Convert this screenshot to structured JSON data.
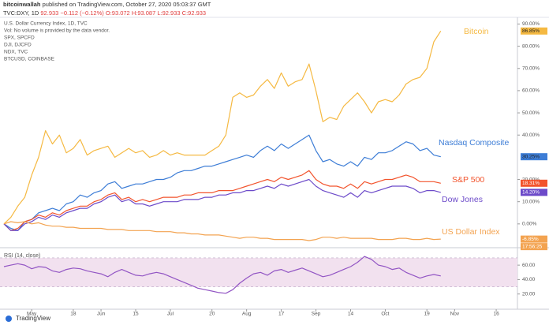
{
  "header": {
    "author": "bitcoinwallah",
    "published": "published on TradingView.com, October 27, 2020 05:03:37 GMT",
    "symbol": "TVC:DXY, 1D",
    "price": "92.933",
    "change": "−0.112 (−0.12%)",
    "ohlc": [
      "O:93.072",
      "H:93.087",
      "L:92.933",
      "C:92.933"
    ]
  },
  "footer": {
    "brand": "TradingView"
  },
  "chart_data": [
    {
      "type": "line",
      "info_lines": [
        "U.S. Dollar Currency Index, 1D, TVC",
        "Vol: No volume is provided by the data vendor.",
        "SPX, SPCFD",
        "DJI, DJCFD",
        "NDX, TVC",
        "BTCUSD, COINBASE"
      ],
      "countdown": "17:56:25",
      "categories": [
        null,
        null,
        null,
        null,
        "May",
        null,
        null,
        null,
        null,
        null,
        "18",
        null,
        null,
        null,
        "Jun",
        null,
        null,
        null,
        null,
        "15",
        null,
        null,
        null,
        null,
        "Jul",
        null,
        null,
        null,
        null,
        null,
        "20",
        null,
        null,
        null,
        null,
        "Aug",
        null,
        null,
        null,
        null,
        "17",
        null,
        null,
        null,
        null,
        "Sep",
        null,
        null,
        null,
        null,
        "14",
        null,
        null,
        null,
        null,
        "Oct",
        null,
        null,
        null,
        null,
        null,
        "19",
        null,
        null,
        null,
        "Nov",
        null,
        null,
        null,
        null,
        null,
        "16",
        null,
        null,
        null
      ],
      "ylim": [
        -10,
        93
      ],
      "yticks": [
        {
          "value": 90,
          "label": "90.00%"
        },
        {
          "value": 80,
          "label": "80.00%"
        },
        {
          "value": 70,
          "label": "70.00%"
        },
        {
          "value": 60,
          "label": "60.00%"
        },
        {
          "value": 50,
          "label": "50.00%"
        },
        {
          "value": 40,
          "label": "40.00%"
        },
        {
          "value": 20,
          "label": "20.00%"
        },
        {
          "value": 10,
          "label": "10.00%"
        },
        {
          "value": 0,
          "label": "0.00%"
        }
      ],
      "series": [
        {
          "name": "Bitcoin",
          "color": "#f5b942",
          "values": [
            0,
            3,
            8,
            12,
            22,
            30,
            42,
            36,
            40,
            32,
            34,
            38,
            31,
            33,
            34,
            35,
            30,
            32,
            34,
            32,
            33,
            30,
            31,
            33,
            31,
            32,
            31,
            31,
            31,
            31,
            33,
            35,
            40,
            57,
            59,
            57,
            58,
            62,
            65,
            61,
            68,
            62,
            64,
            65,
            72,
            60,
            46,
            48,
            47,
            53,
            56,
            59,
            55,
            50,
            55,
            56,
            55,
            58,
            63,
            65,
            66,
            70,
            82,
            86.85,
            null,
            null,
            null,
            null,
            null,
            null,
            null,
            null,
            null,
            null,
            null
          ],
          "value_labels": [
            null,
            null,
            null,
            null,
            null,
            null,
            null,
            null,
            null,
            null,
            null,
            null,
            null,
            null,
            null,
            null,
            null,
            null,
            null,
            null,
            null,
            null,
            null,
            null,
            null,
            null,
            null,
            null,
            null,
            null,
            null,
            null,
            null,
            null,
            null,
            null,
            null,
            null,
            null,
            null,
            null,
            null,
            null,
            null,
            null,
            null,
            null,
            null,
            null,
            null,
            null,
            null,
            null,
            null,
            null,
            null,
            null,
            null,
            null,
            null,
            null,
            null,
            null,
            "86.85%",
            null,
            null,
            null,
            null,
            null,
            null,
            null,
            null,
            null,
            null,
            null
          ]
        },
        {
          "name": "Nasdaq Composite",
          "color": "#3d7dd6",
          "values": [
            0,
            -2,
            -3,
            1,
            2,
            5,
            6,
            7,
            6,
            9,
            10,
            13,
            12,
            14,
            15,
            18,
            19,
            16,
            17,
            18,
            18,
            19,
            20,
            20,
            21,
            23,
            24,
            24,
            25,
            26,
            26,
            27,
            28,
            29,
            30,
            31,
            30,
            33,
            35,
            33,
            36,
            34,
            36,
            38,
            40,
            33,
            28,
            29,
            27,
            26,
            28,
            26,
            30,
            29,
            32,
            32,
            33,
            35,
            37,
            36,
            33,
            34,
            31,
            30.25,
            null,
            null,
            null,
            null,
            null,
            null,
            null,
            null,
            null,
            null,
            null
          ],
          "value_labels": [
            null,
            null,
            null,
            null,
            null,
            null,
            null,
            null,
            null,
            null,
            null,
            null,
            null,
            null,
            null,
            null,
            null,
            null,
            null,
            null,
            null,
            null,
            null,
            null,
            null,
            null,
            null,
            null,
            null,
            null,
            null,
            null,
            null,
            null,
            null,
            null,
            null,
            null,
            null,
            null,
            null,
            null,
            null,
            null,
            null,
            null,
            null,
            null,
            null,
            null,
            null,
            null,
            null,
            null,
            null,
            null,
            null,
            null,
            null,
            null,
            null,
            null,
            null,
            "30.25%",
            null,
            null,
            null,
            null,
            null,
            null,
            null,
            null,
            null,
            null,
            null
          ]
        },
        {
          "name": "S&P 500",
          "color": "#f2542d",
          "values": [
            0,
            -3,
            -2,
            1,
            2,
            4,
            3,
            5,
            4,
            6,
            7,
            8,
            8,
            10,
            11,
            13,
            14,
            11,
            12,
            10,
            11,
            10,
            11,
            12,
            12,
            12,
            13,
            13,
            14,
            14,
            14,
            15,
            15,
            15,
            16,
            17,
            18,
            19,
            20,
            19,
            21,
            20,
            21,
            22,
            24,
            20,
            18,
            17,
            17,
            16,
            18,
            16,
            19,
            18,
            19,
            20,
            20,
            21,
            22,
            21,
            19,
            19,
            19,
            18.31,
            null,
            null,
            null,
            null,
            null,
            null,
            null,
            null,
            null,
            null,
            null
          ],
          "value_labels": [
            null,
            null,
            null,
            null,
            null,
            null,
            null,
            null,
            null,
            null,
            null,
            null,
            null,
            null,
            null,
            null,
            null,
            null,
            null,
            null,
            null,
            null,
            null,
            null,
            null,
            null,
            null,
            null,
            null,
            null,
            null,
            null,
            null,
            null,
            null,
            null,
            null,
            null,
            null,
            null,
            null,
            null,
            null,
            null,
            null,
            null,
            null,
            null,
            null,
            null,
            null,
            null,
            null,
            null,
            null,
            null,
            null,
            null,
            null,
            null,
            null,
            null,
            null,
            "18.31%",
            null,
            null,
            null,
            null,
            null,
            null,
            null,
            null,
            null,
            null,
            null
          ]
        },
        {
          "name": "Dow Jones",
          "color": "#6c4ac9",
          "values": [
            0,
            -3,
            -3,
            0,
            1,
            3,
            2,
            4,
            3,
            5,
            6,
            7,
            7,
            9,
            10,
            12,
            13,
            10,
            11,
            9,
            9,
            8,
            9,
            10,
            10,
            10,
            11,
            11,
            11,
            12,
            12,
            13,
            13,
            14,
            14,
            15,
            15,
            16,
            17,
            16,
            18,
            17,
            18,
            19,
            20,
            17,
            15,
            14,
            13,
            12,
            14,
            12,
            15,
            14,
            15,
            16,
            17,
            17,
            17,
            16,
            14,
            15,
            15,
            14.2,
            null,
            null,
            null,
            null,
            null,
            null,
            null,
            null,
            null,
            null,
            null
          ],
          "value_labels": [
            null,
            null,
            null,
            null,
            null,
            null,
            null,
            null,
            null,
            null,
            null,
            null,
            null,
            null,
            null,
            null,
            null,
            null,
            null,
            null,
            null,
            null,
            null,
            null,
            null,
            null,
            null,
            null,
            null,
            null,
            null,
            null,
            null,
            null,
            null,
            null,
            null,
            null,
            null,
            null,
            null,
            null,
            null,
            null,
            null,
            null,
            null,
            null,
            null,
            null,
            null,
            null,
            null,
            null,
            null,
            null,
            null,
            null,
            null,
            null,
            null,
            null,
            null,
            "14.20%",
            null,
            null,
            null,
            null,
            null,
            null,
            null,
            null,
            null,
            null,
            null
          ]
        },
        {
          "name": "US Dollar Index",
          "color": "#f3a350",
          "values": [
            0,
            1,
            0.5,
            1,
            0,
            0.5,
            -0.5,
            -1,
            -1,
            -1.5,
            -1.5,
            -2,
            -2,
            -2,
            -2,
            -2.5,
            -2.5,
            -2.5,
            -3,
            -3,
            -3,
            -3,
            -3.5,
            -3.5,
            -3.5,
            -4,
            -4,
            -4.5,
            -4.5,
            -5,
            -5,
            -5,
            -5.5,
            -6,
            -6.5,
            -6,
            -6,
            -6.5,
            -6.5,
            -7,
            -7,
            -7,
            -7,
            -7,
            -7.5,
            -7,
            -6,
            -6,
            -6.5,
            -6,
            -6.5,
            -6.5,
            -6.5,
            -6.5,
            -7,
            -7,
            -7,
            -6.5,
            -6.5,
            -7,
            -7,
            -6.5,
            -7,
            -6.85,
            null,
            null,
            null,
            null,
            null,
            null,
            null,
            null,
            null,
            null,
            null
          ],
          "value_labels": [
            null,
            null,
            null,
            null,
            null,
            null,
            null,
            null,
            null,
            null,
            null,
            null,
            null,
            null,
            null,
            null,
            null,
            null,
            null,
            null,
            null,
            null,
            null,
            null,
            null,
            null,
            null,
            null,
            null,
            null,
            null,
            null,
            null,
            null,
            null,
            null,
            null,
            null,
            null,
            null,
            null,
            null,
            null,
            null,
            null,
            null,
            null,
            null,
            null,
            null,
            null,
            null,
            null,
            null,
            null,
            null,
            null,
            null,
            null,
            null,
            null,
            null,
            null,
            "-6.85%",
            null,
            null,
            null,
            null,
            null,
            null,
            null,
            null,
            null,
            null,
            null
          ]
        }
      ]
    },
    {
      "type": "line",
      "title": "RSI (14, close)",
      "ylim": [
        0,
        82
      ],
      "band": [
        30,
        70
      ],
      "band_color": "#f2e1ef",
      "yticks": [
        {
          "value": 60,
          "label": "60.00"
        },
        {
          "value": 40,
          "label": "40.00"
        },
        {
          "value": 20,
          "label": "20.00"
        }
      ],
      "series": [
        {
          "name": "RSI",
          "color": "#9255c4",
          "values": [
            58,
            60,
            62,
            60,
            55,
            58,
            57,
            52,
            50,
            54,
            56,
            55,
            52,
            50,
            48,
            44,
            50,
            54,
            50,
            46,
            45,
            48,
            50,
            48,
            44,
            40,
            36,
            32,
            28,
            26,
            24,
            22,
            21,
            26,
            35,
            42,
            48,
            50,
            46,
            52,
            54,
            50,
            53,
            56,
            52,
            48,
            44,
            46,
            50,
            54,
            58,
            64,
            72,
            68,
            60,
            58,
            54,
            56,
            50,
            46,
            42,
            45,
            47,
            45,
            null,
            null,
            null,
            null,
            null,
            null,
            null,
            null,
            null,
            null,
            null
          ]
        }
      ]
    }
  ]
}
